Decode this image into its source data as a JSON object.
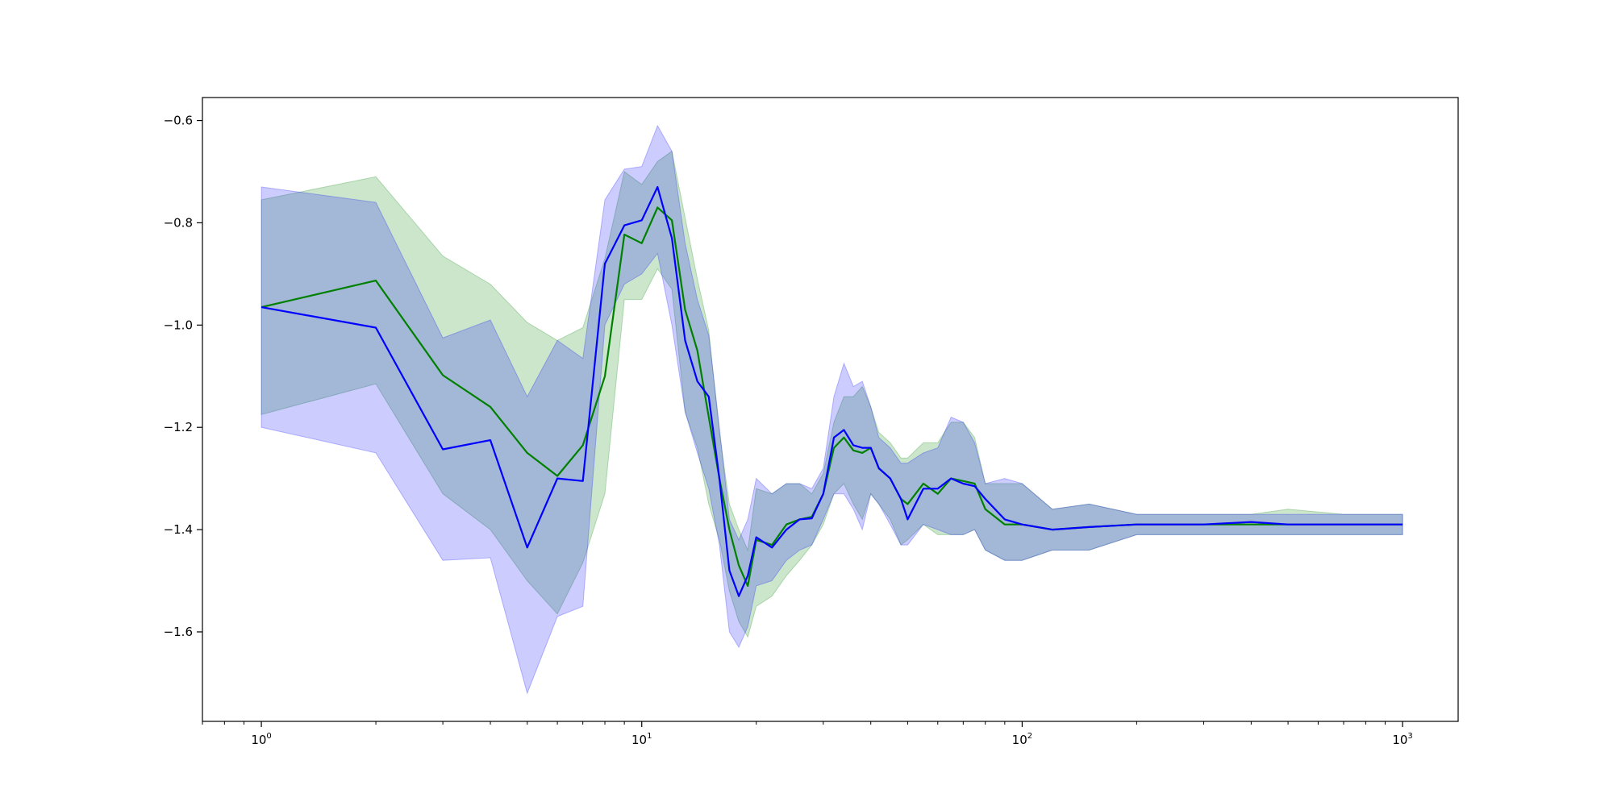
{
  "chart_data": {
    "type": "line",
    "x_scale": "log",
    "xlim": [
      0.7,
      1400
    ],
    "ylim": [
      -1.775,
      -0.555
    ],
    "grid": false,
    "legend": "none",
    "x_ticks": [
      {
        "value": 1,
        "base": "10",
        "exp": "0"
      },
      {
        "value": 10,
        "base": "10",
        "exp": "1"
      },
      {
        "value": 100,
        "base": "10",
        "exp": "2"
      },
      {
        "value": 1000,
        "base": "10",
        "exp": "3"
      }
    ],
    "y_ticks": [
      {
        "value": -0.6,
        "label": "−0.6"
      },
      {
        "value": -0.8,
        "label": "−0.8"
      },
      {
        "value": -1.0,
        "label": "−1.0"
      },
      {
        "value": -1.2,
        "label": "−1.2"
      },
      {
        "value": -1.4,
        "label": "−1.4"
      },
      {
        "value": -1.6,
        "label": "−1.6"
      }
    ],
    "series": [
      {
        "color": "#008000",
        "band_color": "#008000",
        "x": [
          1,
          2,
          3,
          4,
          5,
          6,
          7,
          8,
          9,
          10,
          11,
          12,
          13,
          14,
          15,
          16,
          17,
          18,
          19,
          20,
          22,
          24,
          26,
          28,
          30,
          32,
          34,
          36,
          38,
          40,
          42,
          45,
          48,
          50,
          55,
          60,
          65,
          70,
          75,
          80,
          90,
          100,
          120,
          150,
          200,
          300,
          400,
          500,
          700,
          1000
        ],
        "y": [
          -0.965,
          -0.913,
          -1.098,
          -1.16,
          -1.25,
          -1.295,
          -1.235,
          -1.1,
          -0.823,
          -0.84,
          -0.77,
          -0.795,
          -0.97,
          -1.05,
          -1.18,
          -1.3,
          -1.4,
          -1.47,
          -1.51,
          -1.42,
          -1.43,
          -1.39,
          -1.38,
          -1.375,
          -1.33,
          -1.24,
          -1.22,
          -1.245,
          -1.25,
          -1.24,
          -1.28,
          -1.3,
          -1.34,
          -1.35,
          -1.31,
          -1.33,
          -1.3,
          -1.305,
          -1.31,
          -1.36,
          -1.39,
          -1.39,
          -1.4,
          -1.395,
          -1.39,
          -1.39,
          -1.39,
          -1.39,
          -1.39,
          -1.39
        ],
        "upper": [
          -0.755,
          -0.71,
          -0.865,
          -0.92,
          -0.995,
          -1.03,
          -1.005,
          -0.87,
          -0.7,
          -0.725,
          -0.68,
          -0.66,
          -0.79,
          -0.91,
          -1.01,
          -1.21,
          -1.35,
          -1.4,
          -1.44,
          -1.32,
          -1.33,
          -1.31,
          -1.31,
          -1.33,
          -1.29,
          -1.19,
          -1.14,
          -1.14,
          -1.12,
          -1.16,
          -1.21,
          -1.23,
          -1.26,
          -1.26,
          -1.23,
          -1.23,
          -1.19,
          -1.19,
          -1.22,
          -1.31,
          -1.31,
          -1.31,
          -1.36,
          -1.35,
          -1.37,
          -1.37,
          -1.37,
          -1.36,
          -1.37,
          -1.37
        ],
        "lower": [
          -1.175,
          -1.115,
          -1.33,
          -1.4,
          -1.5,
          -1.565,
          -1.465,
          -1.33,
          -0.95,
          -0.95,
          -0.89,
          -0.93,
          -1.17,
          -1.24,
          -1.35,
          -1.42,
          -1.52,
          -1.58,
          -1.61,
          -1.55,
          -1.53,
          -1.49,
          -1.46,
          -1.43,
          -1.39,
          -1.33,
          -1.31,
          -1.35,
          -1.38,
          -1.33,
          -1.35,
          -1.38,
          -1.43,
          -1.42,
          -1.39,
          -1.41,
          -1.41,
          -1.41,
          -1.4,
          -1.44,
          -1.46,
          -1.46,
          -1.44,
          -1.44,
          -1.41,
          -1.41,
          -1.41,
          -1.41,
          -1.41,
          -1.41
        ]
      },
      {
        "color": "#0000ff",
        "band_color": "#0000ff",
        "x": [
          1,
          2,
          3,
          4,
          5,
          6,
          7,
          8,
          9,
          10,
          11,
          12,
          13,
          14,
          15,
          16,
          17,
          18,
          19,
          20,
          22,
          24,
          26,
          28,
          30,
          32,
          34,
          36,
          38,
          40,
          42,
          45,
          48,
          50,
          55,
          60,
          65,
          70,
          75,
          80,
          90,
          100,
          120,
          150,
          200,
          300,
          400,
          500,
          700,
          1000
        ],
        "y": [
          -0.965,
          -1.005,
          -1.243,
          -1.225,
          -1.435,
          -1.3,
          -1.305,
          -0.88,
          -0.805,
          -0.795,
          -0.73,
          -0.83,
          -1.03,
          -1.11,
          -1.14,
          -1.3,
          -1.48,
          -1.53,
          -1.49,
          -1.415,
          -1.435,
          -1.4,
          -1.38,
          -1.378,
          -1.33,
          -1.22,
          -1.205,
          -1.235,
          -1.24,
          -1.24,
          -1.28,
          -1.3,
          -1.34,
          -1.38,
          -1.32,
          -1.32,
          -1.3,
          -1.31,
          -1.315,
          -1.34,
          -1.38,
          -1.39,
          -1.4,
          -1.395,
          -1.39,
          -1.39,
          -1.385,
          -1.39,
          -1.39,
          -1.39
        ],
        "upper": [
          -0.73,
          -0.76,
          -1.025,
          -0.99,
          -1.14,
          -1.03,
          -1.065,
          -0.755,
          -0.695,
          -0.69,
          -0.61,
          -0.66,
          -0.84,
          -0.95,
          -1.02,
          -1.2,
          -1.38,
          -1.42,
          -1.38,
          -1.3,
          -1.33,
          -1.31,
          -1.31,
          -1.32,
          -1.28,
          -1.14,
          -1.075,
          -1.12,
          -1.11,
          -1.16,
          -1.22,
          -1.24,
          -1.27,
          -1.27,
          -1.25,
          -1.24,
          -1.18,
          -1.19,
          -1.23,
          -1.31,
          -1.3,
          -1.31,
          -1.36,
          -1.35,
          -1.37,
          -1.37,
          -1.37,
          -1.37,
          -1.37,
          -1.37
        ],
        "lower": [
          -1.2,
          -1.25,
          -1.46,
          -1.455,
          -1.72,
          -1.57,
          -1.55,
          -1.0,
          -0.92,
          -0.9,
          -0.86,
          -1.0,
          -1.17,
          -1.25,
          -1.32,
          -1.43,
          -1.6,
          -1.63,
          -1.59,
          -1.51,
          -1.5,
          -1.46,
          -1.44,
          -1.43,
          -1.38,
          -1.33,
          -1.33,
          -1.36,
          -1.4,
          -1.33,
          -1.35,
          -1.39,
          -1.43,
          -1.43,
          -1.39,
          -1.4,
          -1.41,
          -1.41,
          -1.4,
          -1.44,
          -1.46,
          -1.46,
          -1.44,
          -1.44,
          -1.41,
          -1.41,
          -1.41,
          -1.41,
          -1.41,
          -1.41
        ]
      }
    ]
  }
}
